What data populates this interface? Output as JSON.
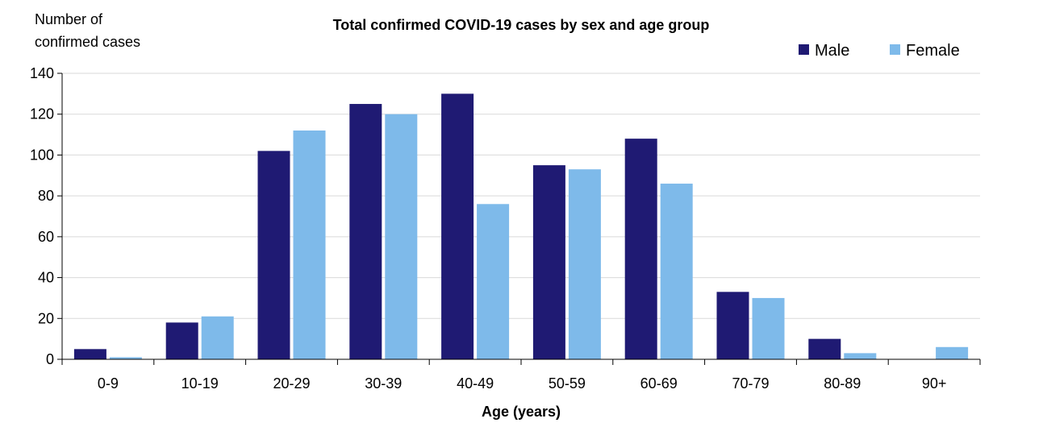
{
  "chart_data": {
    "type": "bar",
    "title": "Total confirmed COVID-19 cases by sex and age group",
    "ylabel_lines": [
      "Number of",
      "confirmed cases"
    ],
    "xlabel": "Age (years)",
    "ylim": [
      0,
      140
    ],
    "yticks": [
      0,
      20,
      40,
      60,
      80,
      100,
      120,
      140
    ],
    "grid": true,
    "legend_position": "top-right",
    "categories": [
      "0-9",
      "10-19",
      "20-29",
      "30-39",
      "40-49",
      "50-59",
      "60-69",
      "70-79",
      "80-89",
      "90+"
    ],
    "series": [
      {
        "name": "Male",
        "color": "#1f1a73",
        "values": [
          5,
          18,
          102,
          125,
          130,
          95,
          108,
          33,
          10,
          0
        ]
      },
      {
        "name": "Female",
        "color": "#7ebaea",
        "values": [
          1,
          21,
          112,
          120,
          76,
          93,
          86,
          30,
          3,
          6
        ]
      }
    ]
  }
}
